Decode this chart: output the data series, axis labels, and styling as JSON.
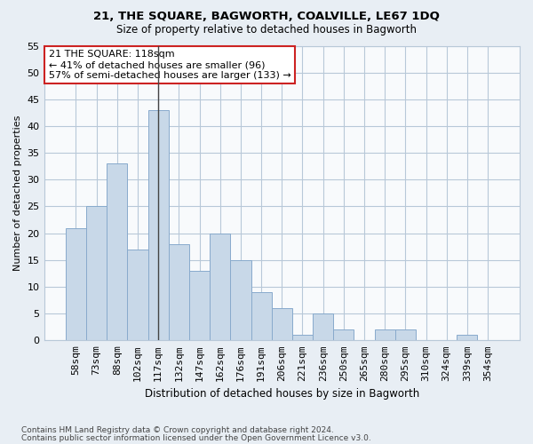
{
  "title": "21, THE SQUARE, BAGWORTH, COALVILLE, LE67 1DQ",
  "subtitle": "Size of property relative to detached houses in Bagworth",
  "xlabel": "Distribution of detached houses by size in Bagworth",
  "ylabel": "Number of detached properties",
  "bar_color": "#c8d8e8",
  "bar_edge_color": "#88aacc",
  "categories": [
    "58sqm",
    "73sqm",
    "88sqm",
    "102sqm",
    "117sqm",
    "132sqm",
    "147sqm",
    "162sqm",
    "176sqm",
    "191sqm",
    "206sqm",
    "221sqm",
    "236sqm",
    "250sqm",
    "265sqm",
    "280sqm",
    "295sqm",
    "310sqm",
    "324sqm",
    "339sqm",
    "354sqm"
  ],
  "values": [
    21,
    25,
    33,
    17,
    43,
    18,
    13,
    20,
    15,
    9,
    6,
    1,
    5,
    2,
    0,
    2,
    2,
    0,
    0,
    1,
    0
  ],
  "ylim": [
    0,
    55
  ],
  "yticks": [
    0,
    5,
    10,
    15,
    20,
    25,
    30,
    35,
    40,
    45,
    50,
    55
  ],
  "property_bar_index": 4,
  "annotation_line1": "21 THE SQUARE: 118sqm",
  "annotation_line2": "← 41% of detached houses are smaller (96)",
  "annotation_line3": "57% of semi-detached houses are larger (133) →",
  "footnote1": "Contains HM Land Registry data © Crown copyright and database right 2024.",
  "footnote2": "Contains public sector information licensed under the Open Government Licence v3.0.",
  "background_color": "#e8eef4",
  "plot_background_color": "#f8fafc",
  "grid_color": "#b8c8d8",
  "annotation_box_color": "#ffffff",
  "annotation_box_edge": "#cc2222",
  "vline_color": "#444444"
}
